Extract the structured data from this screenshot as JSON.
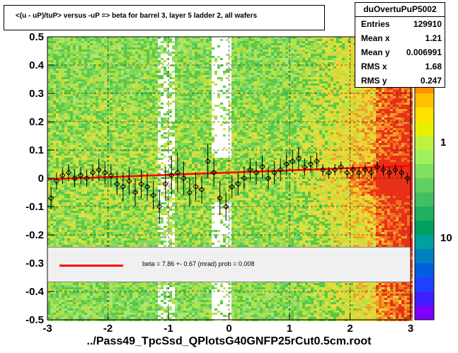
{
  "chart_data": {
    "type": "scatter",
    "title": "<(u - uP)/tuP> versus  -uP => beta for barrel 3, layer 5 ladder 2, all wafers",
    "xlabel": "../Pass49_TpcSsd_QPlotsG40GNFP25rCut0.5cm.root",
    "ylabel": "",
    "xlim": [
      -3,
      3
    ],
    "ylim": [
      -0.5,
      0.5
    ],
    "x_ticks": [
      "-3",
      "-2",
      "-1",
      "0",
      "1",
      "2",
      "3"
    ],
    "y_ticks": [
      "-0.5",
      "-0.4",
      "-0.3",
      "-0.2",
      "-0.1",
      "0",
      "0.1",
      "0.2",
      "0.3",
      "0.4",
      "0.5"
    ],
    "colorbar": {
      "scale": "log",
      "tick_labels": [
        "1",
        "10"
      ]
    },
    "grid": true,
    "stats": {
      "name": "duOvertuPuP5002",
      "rows": [
        {
          "label": "Entries",
          "value": "129910"
        },
        {
          "label": "Mean x",
          "value": "1.21"
        },
        {
          "label": "Mean y",
          "value": "0.006991"
        },
        {
          "label": "RMS x",
          "value": "1.68"
        },
        {
          "label": "RMS y",
          "value": "0.247"
        }
      ]
    },
    "legend": {
      "placement": "bottom",
      "entry": "beta =    7.86 +-  0.67 (mrad) prob = 0.008",
      "color": "#ff0000"
    },
    "fit_line": {
      "x": [
        -3,
        3
      ],
      "y": [
        -0.0035,
        0.0437
      ],
      "color": "#ff0000"
    },
    "profile_points": {
      "x": [
        -2.94,
        -2.85,
        -2.75,
        -2.65,
        -2.55,
        -2.45,
        -2.35,
        -2.25,
        -2.15,
        -2.05,
        -1.95,
        -1.85,
        -1.75,
        -1.65,
        -1.55,
        -1.45,
        -1.35,
        -1.25,
        -1.15,
        -1.05,
        -0.95,
        -0.85,
        -0.75,
        -0.65,
        -0.55,
        -0.45,
        -0.35,
        -0.25,
        -0.15,
        -0.05,
        0.05,
        0.15,
        0.25,
        0.35,
        0.45,
        0.55,
        0.65,
        0.75,
        0.85,
        0.95,
        1.05,
        1.15,
        1.25,
        1.35,
        1.45,
        1.55,
        1.65,
        1.75,
        1.85,
        1.95,
        2.05,
        2.15,
        2.25,
        2.35,
        2.45,
        2.55,
        2.65,
        2.75,
        2.85,
        2.95
      ],
      "y": [
        -0.07,
        -0.01,
        0.01,
        0.02,
        0.0,
        0.01,
        0.0,
        0.02,
        0.03,
        0.02,
        0.01,
        -0.02,
        -0.03,
        -0.01,
        -0.05,
        -0.02,
        -0.03,
        -0.06,
        -0.1,
        -0.02,
        0.01,
        0.02,
        0.0,
        -0.05,
        -0.03,
        -0.04,
        0.06,
        0.02,
        -0.07,
        -0.1,
        -0.03,
        -0.02,
        0.0,
        0.03,
        0.02,
        0.04,
        0.0,
        0.02,
        0.03,
        0.05,
        0.06,
        0.07,
        0.04,
        0.05,
        0.06,
        0.03,
        0.02,
        0.03,
        0.04,
        0.02,
        0.03,
        0.02,
        0.03,
        0.02,
        0.04,
        0.03,
        0.02,
        0.03,
        0.02,
        0.0
      ],
      "yerr": [
        0.04,
        0.03,
        0.03,
        0.03,
        0.03,
        0.03,
        0.03,
        0.03,
        0.04,
        0.04,
        0.04,
        0.04,
        0.05,
        0.05,
        0.05,
        0.05,
        0.05,
        0.05,
        0.06,
        0.06,
        0.07,
        0.07,
        0.06,
        0.05,
        0.05,
        0.05,
        0.06,
        0.05,
        0.06,
        0.05,
        0.04,
        0.04,
        0.04,
        0.04,
        0.04,
        0.04,
        0.04,
        0.04,
        0.04,
        0.04,
        0.04,
        0.04,
        0.03,
        0.03,
        0.03,
        0.02,
        0.02,
        0.02,
        0.02,
        0.02,
        0.02,
        0.02,
        0.02,
        0.02,
        0.02,
        0.02,
        0.02,
        0.02,
        0.02,
        0.02
      ]
    }
  }
}
